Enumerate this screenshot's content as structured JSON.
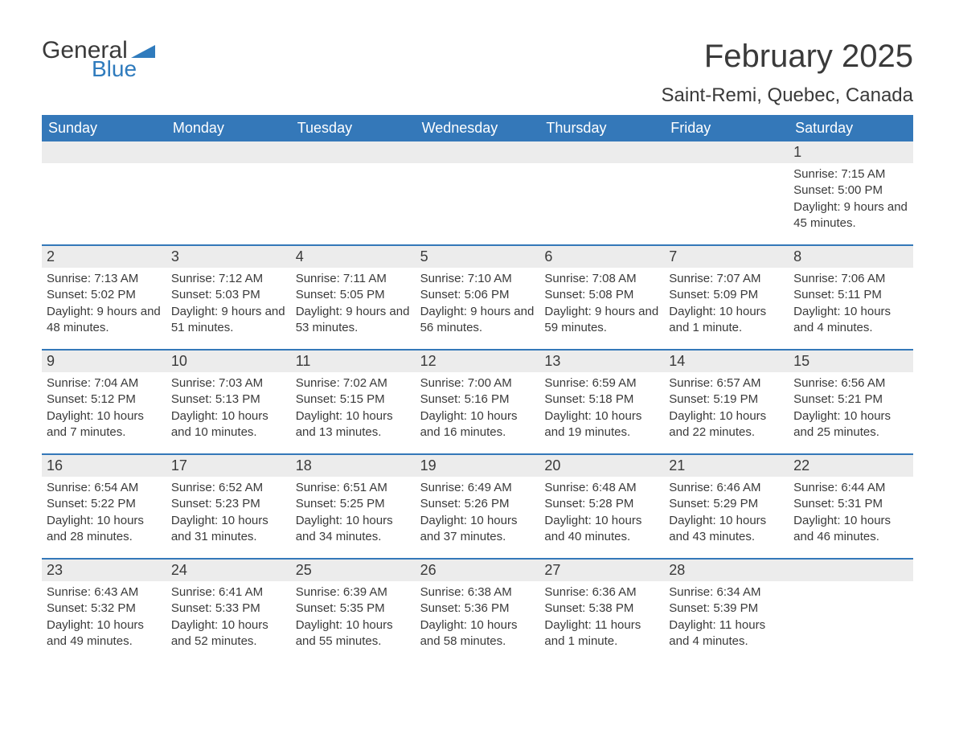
{
  "logo": {
    "text_general": "General",
    "text_blue": "Blue",
    "triangle_color": "#2f7bbd"
  },
  "title": "February 2025",
  "location": "Saint-Remi, Quebec, Canada",
  "colors": {
    "header_bg": "#3478b9",
    "header_text": "#ffffff",
    "daynum_bg": "#ececec",
    "text": "#3a3a3a",
    "week_border": "#3478b9"
  },
  "day_headers": [
    "Sunday",
    "Monday",
    "Tuesday",
    "Wednesday",
    "Thursday",
    "Friday",
    "Saturday"
  ],
  "weeks": [
    [
      {
        "day": "",
        "sunrise": "",
        "sunset": "",
        "daylight": ""
      },
      {
        "day": "",
        "sunrise": "",
        "sunset": "",
        "daylight": ""
      },
      {
        "day": "",
        "sunrise": "",
        "sunset": "",
        "daylight": ""
      },
      {
        "day": "",
        "sunrise": "",
        "sunset": "",
        "daylight": ""
      },
      {
        "day": "",
        "sunrise": "",
        "sunset": "",
        "daylight": ""
      },
      {
        "day": "",
        "sunrise": "",
        "sunset": "",
        "daylight": ""
      },
      {
        "day": "1",
        "sunrise": "Sunrise: 7:15 AM",
        "sunset": "Sunset: 5:00 PM",
        "daylight": "Daylight: 9 hours and 45 minutes."
      }
    ],
    [
      {
        "day": "2",
        "sunrise": "Sunrise: 7:13 AM",
        "sunset": "Sunset: 5:02 PM",
        "daylight": "Daylight: 9 hours and 48 minutes."
      },
      {
        "day": "3",
        "sunrise": "Sunrise: 7:12 AM",
        "sunset": "Sunset: 5:03 PM",
        "daylight": "Daylight: 9 hours and 51 minutes."
      },
      {
        "day": "4",
        "sunrise": "Sunrise: 7:11 AM",
        "sunset": "Sunset: 5:05 PM",
        "daylight": "Daylight: 9 hours and 53 minutes."
      },
      {
        "day": "5",
        "sunrise": "Sunrise: 7:10 AM",
        "sunset": "Sunset: 5:06 PM",
        "daylight": "Daylight: 9 hours and 56 minutes."
      },
      {
        "day": "6",
        "sunrise": "Sunrise: 7:08 AM",
        "sunset": "Sunset: 5:08 PM",
        "daylight": "Daylight: 9 hours and 59 minutes."
      },
      {
        "day": "7",
        "sunrise": "Sunrise: 7:07 AM",
        "sunset": "Sunset: 5:09 PM",
        "daylight": "Daylight: 10 hours and 1 minute."
      },
      {
        "day": "8",
        "sunrise": "Sunrise: 7:06 AM",
        "sunset": "Sunset: 5:11 PM",
        "daylight": "Daylight: 10 hours and 4 minutes."
      }
    ],
    [
      {
        "day": "9",
        "sunrise": "Sunrise: 7:04 AM",
        "sunset": "Sunset: 5:12 PM",
        "daylight": "Daylight: 10 hours and 7 minutes."
      },
      {
        "day": "10",
        "sunrise": "Sunrise: 7:03 AM",
        "sunset": "Sunset: 5:13 PM",
        "daylight": "Daylight: 10 hours and 10 minutes."
      },
      {
        "day": "11",
        "sunrise": "Sunrise: 7:02 AM",
        "sunset": "Sunset: 5:15 PM",
        "daylight": "Daylight: 10 hours and 13 minutes."
      },
      {
        "day": "12",
        "sunrise": "Sunrise: 7:00 AM",
        "sunset": "Sunset: 5:16 PM",
        "daylight": "Daylight: 10 hours and 16 minutes."
      },
      {
        "day": "13",
        "sunrise": "Sunrise: 6:59 AM",
        "sunset": "Sunset: 5:18 PM",
        "daylight": "Daylight: 10 hours and 19 minutes."
      },
      {
        "day": "14",
        "sunrise": "Sunrise: 6:57 AM",
        "sunset": "Sunset: 5:19 PM",
        "daylight": "Daylight: 10 hours and 22 minutes."
      },
      {
        "day": "15",
        "sunrise": "Sunrise: 6:56 AM",
        "sunset": "Sunset: 5:21 PM",
        "daylight": "Daylight: 10 hours and 25 minutes."
      }
    ],
    [
      {
        "day": "16",
        "sunrise": "Sunrise: 6:54 AM",
        "sunset": "Sunset: 5:22 PM",
        "daylight": "Daylight: 10 hours and 28 minutes."
      },
      {
        "day": "17",
        "sunrise": "Sunrise: 6:52 AM",
        "sunset": "Sunset: 5:23 PM",
        "daylight": "Daylight: 10 hours and 31 minutes."
      },
      {
        "day": "18",
        "sunrise": "Sunrise: 6:51 AM",
        "sunset": "Sunset: 5:25 PM",
        "daylight": "Daylight: 10 hours and 34 minutes."
      },
      {
        "day": "19",
        "sunrise": "Sunrise: 6:49 AM",
        "sunset": "Sunset: 5:26 PM",
        "daylight": "Daylight: 10 hours and 37 minutes."
      },
      {
        "day": "20",
        "sunrise": "Sunrise: 6:48 AM",
        "sunset": "Sunset: 5:28 PM",
        "daylight": "Daylight: 10 hours and 40 minutes."
      },
      {
        "day": "21",
        "sunrise": "Sunrise: 6:46 AM",
        "sunset": "Sunset: 5:29 PM",
        "daylight": "Daylight: 10 hours and 43 minutes."
      },
      {
        "day": "22",
        "sunrise": "Sunrise: 6:44 AM",
        "sunset": "Sunset: 5:31 PM",
        "daylight": "Daylight: 10 hours and 46 minutes."
      }
    ],
    [
      {
        "day": "23",
        "sunrise": "Sunrise: 6:43 AM",
        "sunset": "Sunset: 5:32 PM",
        "daylight": "Daylight: 10 hours and 49 minutes."
      },
      {
        "day": "24",
        "sunrise": "Sunrise: 6:41 AM",
        "sunset": "Sunset: 5:33 PM",
        "daylight": "Daylight: 10 hours and 52 minutes."
      },
      {
        "day": "25",
        "sunrise": "Sunrise: 6:39 AM",
        "sunset": "Sunset: 5:35 PM",
        "daylight": "Daylight: 10 hours and 55 minutes."
      },
      {
        "day": "26",
        "sunrise": "Sunrise: 6:38 AM",
        "sunset": "Sunset: 5:36 PM",
        "daylight": "Daylight: 10 hours and 58 minutes."
      },
      {
        "day": "27",
        "sunrise": "Sunrise: 6:36 AM",
        "sunset": "Sunset: 5:38 PM",
        "daylight": "Daylight: 11 hours and 1 minute."
      },
      {
        "day": "28",
        "sunrise": "Sunrise: 6:34 AM",
        "sunset": "Sunset: 5:39 PM",
        "daylight": "Daylight: 11 hours and 4 minutes."
      },
      {
        "day": "",
        "sunrise": "",
        "sunset": "",
        "daylight": ""
      }
    ]
  ]
}
